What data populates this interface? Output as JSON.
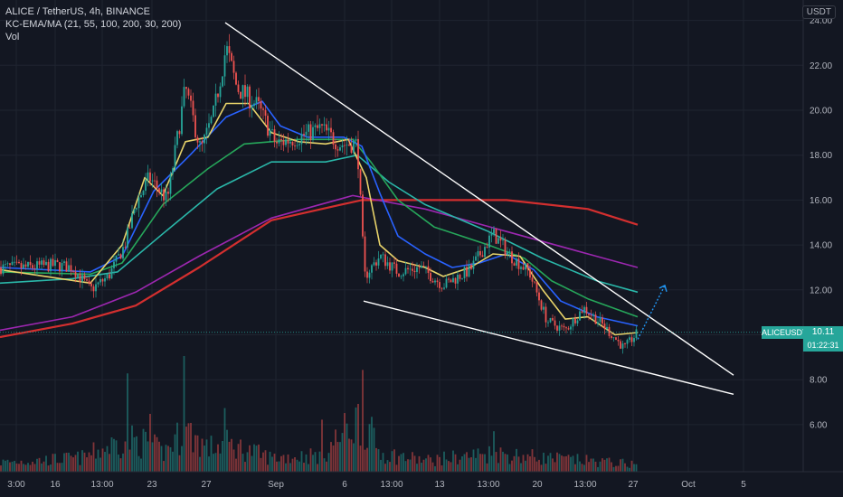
{
  "legend": {
    "symbol": "ALICE / TetherUS, 4h, BINANCE",
    "indicator": "KC-EMA/MA (21, 55, 100, 200, 30, 200)",
    "volume": "Vol"
  },
  "currency_button": "USDT",
  "price_badges": {
    "symbol_tag": "ALICEUSDT",
    "last_price": "10.11",
    "countdown": "01:22:31"
  },
  "colors": {
    "background": "#131722",
    "grid": "#1f2430",
    "up_candle": "#26a69a",
    "down_candle": "#ef5350",
    "ema21": "#e8d36a",
    "ema55": "#2962ff",
    "ma100": "#26a65a",
    "ma200": "#2ab7a9",
    "ema_long": "#9c27b0",
    "ma_long": "#d32f2f",
    "trendline": "#ffffff",
    "projection": "#2196f3",
    "badge_symbol": "#26a69a",
    "badge_price": "#26a69a"
  },
  "chart_data": {
    "type": "candlestick",
    "y_axis": {
      "ticks": [
        "24.00",
        "22.00",
        "20.00",
        "18.00",
        "16.00",
        "14.00",
        "12.00",
        "10.00",
        "8.00",
        "6.00"
      ],
      "ylim": [
        5.0,
        25.1
      ]
    },
    "x_axis": {
      "ticks": [
        "3:00",
        "16",
        "13:00",
        "23",
        "27",
        "Sep",
        "6",
        "13:00",
        "13",
        "13:00",
        "20",
        "13:00",
        "27",
        "Oct",
        "5"
      ]
    },
    "current_price": 10.11,
    "price_path": [
      [
        0,
        13.0
      ],
      [
        30,
        13.0
      ],
      [
        60,
        13.1
      ],
      [
        80,
        13.0
      ],
      [
        100,
        12.0
      ],
      [
        120,
        12.6
      ],
      [
        138,
        14.0
      ],
      [
        150,
        15.8
      ],
      [
        165,
        17.0
      ],
      [
        185,
        16.0
      ],
      [
        205,
        21.0
      ],
      [
        222,
        18.2
      ],
      [
        236,
        19.8
      ],
      [
        250,
        22.8
      ],
      [
        262,
        21.0
      ],
      [
        285,
        20.2
      ],
      [
        305,
        18.5
      ],
      [
        330,
        18.8
      ],
      [
        355,
        19.2
      ],
      [
        375,
        18.5
      ],
      [
        395,
        18.5
      ],
      [
        403,
        12.6
      ],
      [
        420,
        13.5
      ],
      [
        440,
        12.8
      ],
      [
        465,
        13.0
      ],
      [
        490,
        12.2
      ],
      [
        520,
        12.9
      ],
      [
        545,
        14.5
      ],
      [
        565,
        13.5
      ],
      [
        585,
        12.8
      ],
      [
        605,
        10.6
      ],
      [
        625,
        10.2
      ],
      [
        645,
        11.2
      ],
      [
        665,
        10.5
      ],
      [
        690,
        9.4
      ],
      [
        705,
        10.1
      ]
    ],
    "moving_averages": [
      {
        "key": "ma_long",
        "points": [
          [
            0,
            9.9
          ],
          [
            80,
            10.5
          ],
          [
            150,
            11.3
          ],
          [
            220,
            13.0
          ],
          [
            300,
            15.1
          ],
          [
            400,
            16.0
          ],
          [
            470,
            16.0
          ],
          [
            560,
            16.0
          ],
          [
            650,
            15.6
          ],
          [
            705,
            14.9
          ]
        ]
      },
      {
        "key": "ema_long",
        "points": [
          [
            0,
            10.2
          ],
          [
            80,
            10.8
          ],
          [
            150,
            11.9
          ],
          [
            220,
            13.5
          ],
          [
            300,
            15.2
          ],
          [
            390,
            16.2
          ],
          [
            470,
            15.6
          ],
          [
            560,
            14.6
          ],
          [
            650,
            13.6
          ],
          [
            705,
            13.0
          ]
        ]
      },
      {
        "key": "ma200",
        "points": [
          [
            0,
            12.3
          ],
          [
            80,
            12.5
          ],
          [
            130,
            12.8
          ],
          [
            180,
            14.5
          ],
          [
            240,
            16.5
          ],
          [
            300,
            17.7
          ],
          [
            360,
            17.7
          ],
          [
            395,
            18.0
          ],
          [
            430,
            16.8
          ],
          [
            470,
            15.8
          ],
          [
            540,
            14.6
          ],
          [
            600,
            13.4
          ],
          [
            660,
            12.4
          ],
          [
            705,
            11.9
          ]
        ]
      },
      {
        "key": "ma100",
        "points": [
          [
            0,
            12.8
          ],
          [
            100,
            12.7
          ],
          [
            135,
            13.2
          ],
          [
            180,
            15.8
          ],
          [
            230,
            17.4
          ],
          [
            270,
            18.5
          ],
          [
            300,
            18.6
          ],
          [
            330,
            18.7
          ],
          [
            390,
            18.7
          ],
          [
            410,
            17.7
          ],
          [
            440,
            16.0
          ],
          [
            480,
            14.8
          ],
          [
            540,
            14.0
          ],
          [
            580,
            13.4
          ],
          [
            610,
            12.4
          ],
          [
            650,
            11.6
          ],
          [
            705,
            10.8
          ]
        ]
      },
      {
        "key": "ema55",
        "points": [
          [
            0,
            13.0
          ],
          [
            100,
            12.8
          ],
          [
            135,
            13.5
          ],
          [
            170,
            16.4
          ],
          [
            210,
            18.0
          ],
          [
            250,
            19.7
          ],
          [
            290,
            20.4
          ],
          [
            310,
            19.3
          ],
          [
            340,
            18.8
          ],
          [
            380,
            18.8
          ],
          [
            400,
            18.4
          ],
          [
            420,
            16.3
          ],
          [
            440,
            14.4
          ],
          [
            470,
            13.6
          ],
          [
            500,
            13.0
          ],
          [
            530,
            13.2
          ],
          [
            560,
            13.6
          ],
          [
            590,
            12.9
          ],
          [
            620,
            11.5
          ],
          [
            660,
            10.8
          ],
          [
            705,
            10.4
          ]
        ]
      },
      {
        "key": "ema21",
        "points": [
          [
            0,
            12.9
          ],
          [
            100,
            12.3
          ],
          [
            135,
            14.0
          ],
          [
            160,
            17.0
          ],
          [
            180,
            16.2
          ],
          [
            205,
            18.6
          ],
          [
            230,
            18.8
          ],
          [
            250,
            20.3
          ],
          [
            275,
            20.3
          ],
          [
            300,
            19.0
          ],
          [
            330,
            18.6
          ],
          [
            360,
            18.5
          ],
          [
            385,
            18.7
          ],
          [
            405,
            17.0
          ],
          [
            420,
            14.0
          ],
          [
            440,
            13.3
          ],
          [
            470,
            13.0
          ],
          [
            490,
            12.6
          ],
          [
            520,
            13.0
          ],
          [
            545,
            13.6
          ],
          [
            575,
            13.5
          ],
          [
            600,
            12.0
          ],
          [
            625,
            10.7
          ],
          [
            650,
            10.8
          ],
          [
            680,
            10.0
          ],
          [
            705,
            10.1
          ]
        ]
      }
    ],
    "volume_profile": [
      [
        0,
        0.1
      ],
      [
        40,
        0.12
      ],
      [
        90,
        0.15
      ],
      [
        140,
        0.35
      ],
      [
        165,
        0.3
      ],
      [
        180,
        0.2
      ],
      [
        205,
        0.45
      ],
      [
        230,
        0.25
      ],
      [
        250,
        0.3
      ],
      [
        300,
        0.15
      ],
      [
        355,
        0.18
      ],
      [
        400,
        0.6
      ],
      [
        420,
        0.2
      ],
      [
        470,
        0.12
      ],
      [
        545,
        0.2
      ],
      [
        600,
        0.15
      ],
      [
        705,
        0.08
      ]
    ],
    "volume_spikes": [
      [
        140,
        0.85
      ],
      [
        203,
        1.0
      ],
      [
        402,
        0.88
      ],
      [
        165,
        0.5
      ],
      [
        248,
        0.55
      ],
      [
        355,
        0.45
      ],
      [
        545,
        0.35
      ]
    ],
    "drawings": {
      "upper_trendline": [
        [
          249,
          23.9
        ],
        [
          811,
          8.2
        ]
      ],
      "lower_trendline": [
        [
          402,
          11.5
        ],
        [
          811,
          7.35
        ]
      ],
      "projection_arrow": [
        [
          705,
          9.8
        ],
        [
          735,
          12.2
        ]
      ]
    }
  }
}
